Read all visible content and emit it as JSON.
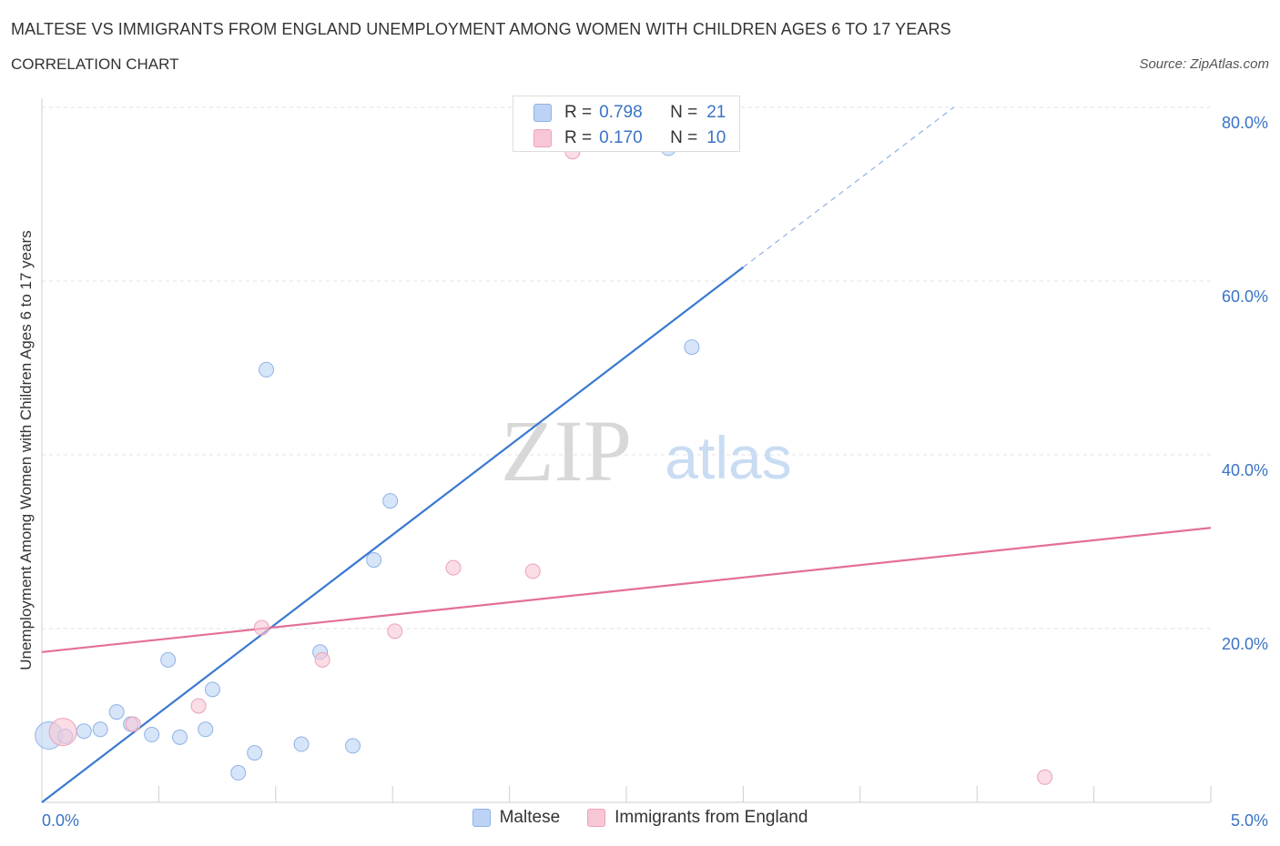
{
  "title": "MALTESE VS IMMIGRANTS FROM ENGLAND UNEMPLOYMENT AMONG WOMEN WITH CHILDREN AGES 6 TO 17 YEARS",
  "subtitle": "CORRELATION CHART",
  "source": "Source: ZipAtlas.com",
  "watermark": {
    "zip": "ZIP",
    "atlas": "atlas"
  },
  "colors": {
    "blue": "#3a78d2",
    "pink": "#e46f98",
    "blue_fill": "#bcd3f5",
    "pink_fill": "#f8c7d6",
    "axis_label": "#3a73c6"
  },
  "legend_top": {
    "r_label": "R =",
    "n_label": "N =",
    "rows": [
      {
        "series": "Maltese",
        "r": "0.798",
        "n": "21"
      },
      {
        "series": "Immigrants from England",
        "r": "0.170",
        "n": "10"
      }
    ]
  },
  "legend_bottom": [
    "Maltese",
    "Immigrants from England"
  ],
  "chart_data": {
    "type": "scatter",
    "title": "MALTESE VS IMMIGRANTS FROM ENGLAND UNEMPLOYMENT AMONG WOMEN WITH CHILDREN AGES 6 TO 17 YEARS",
    "xlabel": "",
    "ylabel": "Unemployment Among Women with Children Ages 6 to 17 years",
    "xlim": [
      0,
      5
    ],
    "ylim": [
      0,
      80
    ],
    "x_tick_labels": [
      "0.0%",
      "5.0%"
    ],
    "y_ticks": [
      20,
      40,
      60,
      80
    ],
    "y_tick_labels": [
      "20.0%",
      "40.0%",
      "60.0%",
      "80.0%"
    ],
    "grid": true,
    "series": [
      {
        "name": "Maltese",
        "points": [
          {
            "x": 0.03,
            "y": 7.7,
            "big": true
          },
          {
            "x": 0.1,
            "y": 7.6
          },
          {
            "x": 0.18,
            "y": 8.2
          },
          {
            "x": 0.25,
            "y": 8.4
          },
          {
            "x": 0.32,
            "y": 10.4
          },
          {
            "x": 0.38,
            "y": 9.0
          },
          {
            "x": 0.47,
            "y": 7.8
          },
          {
            "x": 0.54,
            "y": 16.4
          },
          {
            "x": 0.59,
            "y": 7.5
          },
          {
            "x": 0.7,
            "y": 8.4
          },
          {
            "x": 0.73,
            "y": 13.0
          },
          {
            "x": 0.84,
            "y": 3.4
          },
          {
            "x": 0.91,
            "y": 5.7
          },
          {
            "x": 0.96,
            "y": 49.8
          },
          {
            "x": 1.11,
            "y": 6.7
          },
          {
            "x": 1.19,
            "y": 17.3
          },
          {
            "x": 1.33,
            "y": 6.5
          },
          {
            "x": 1.42,
            "y": 27.9
          },
          {
            "x": 1.49,
            "y": 34.7
          },
          {
            "x": 2.68,
            "y": 75.3
          },
          {
            "x": 2.78,
            "y": 52.4
          }
        ],
        "trend": {
          "x0": 0,
          "y0": 0,
          "x1": 3.0,
          "y1": 61.6,
          "dash_to_x": 3.9,
          "dash_to_y": 80
        }
      },
      {
        "name": "Immigrants from England",
        "points": [
          {
            "x": 0.09,
            "y": 8.1,
            "big": true
          },
          {
            "x": 0.39,
            "y": 9.0
          },
          {
            "x": 0.67,
            "y": 11.1
          },
          {
            "x": 0.94,
            "y": 20.1
          },
          {
            "x": 1.2,
            "y": 16.4
          },
          {
            "x": 1.51,
            "y": 19.7
          },
          {
            "x": 1.76,
            "y": 27.0
          },
          {
            "x": 2.1,
            "y": 26.6
          },
          {
            "x": 2.27,
            "y": 74.9
          },
          {
            "x": 4.29,
            "y": 2.9
          }
        ],
        "trend": {
          "x0": 0,
          "y0": 17.3,
          "x1": 5.0,
          "y1": 31.6
        }
      }
    ]
  }
}
